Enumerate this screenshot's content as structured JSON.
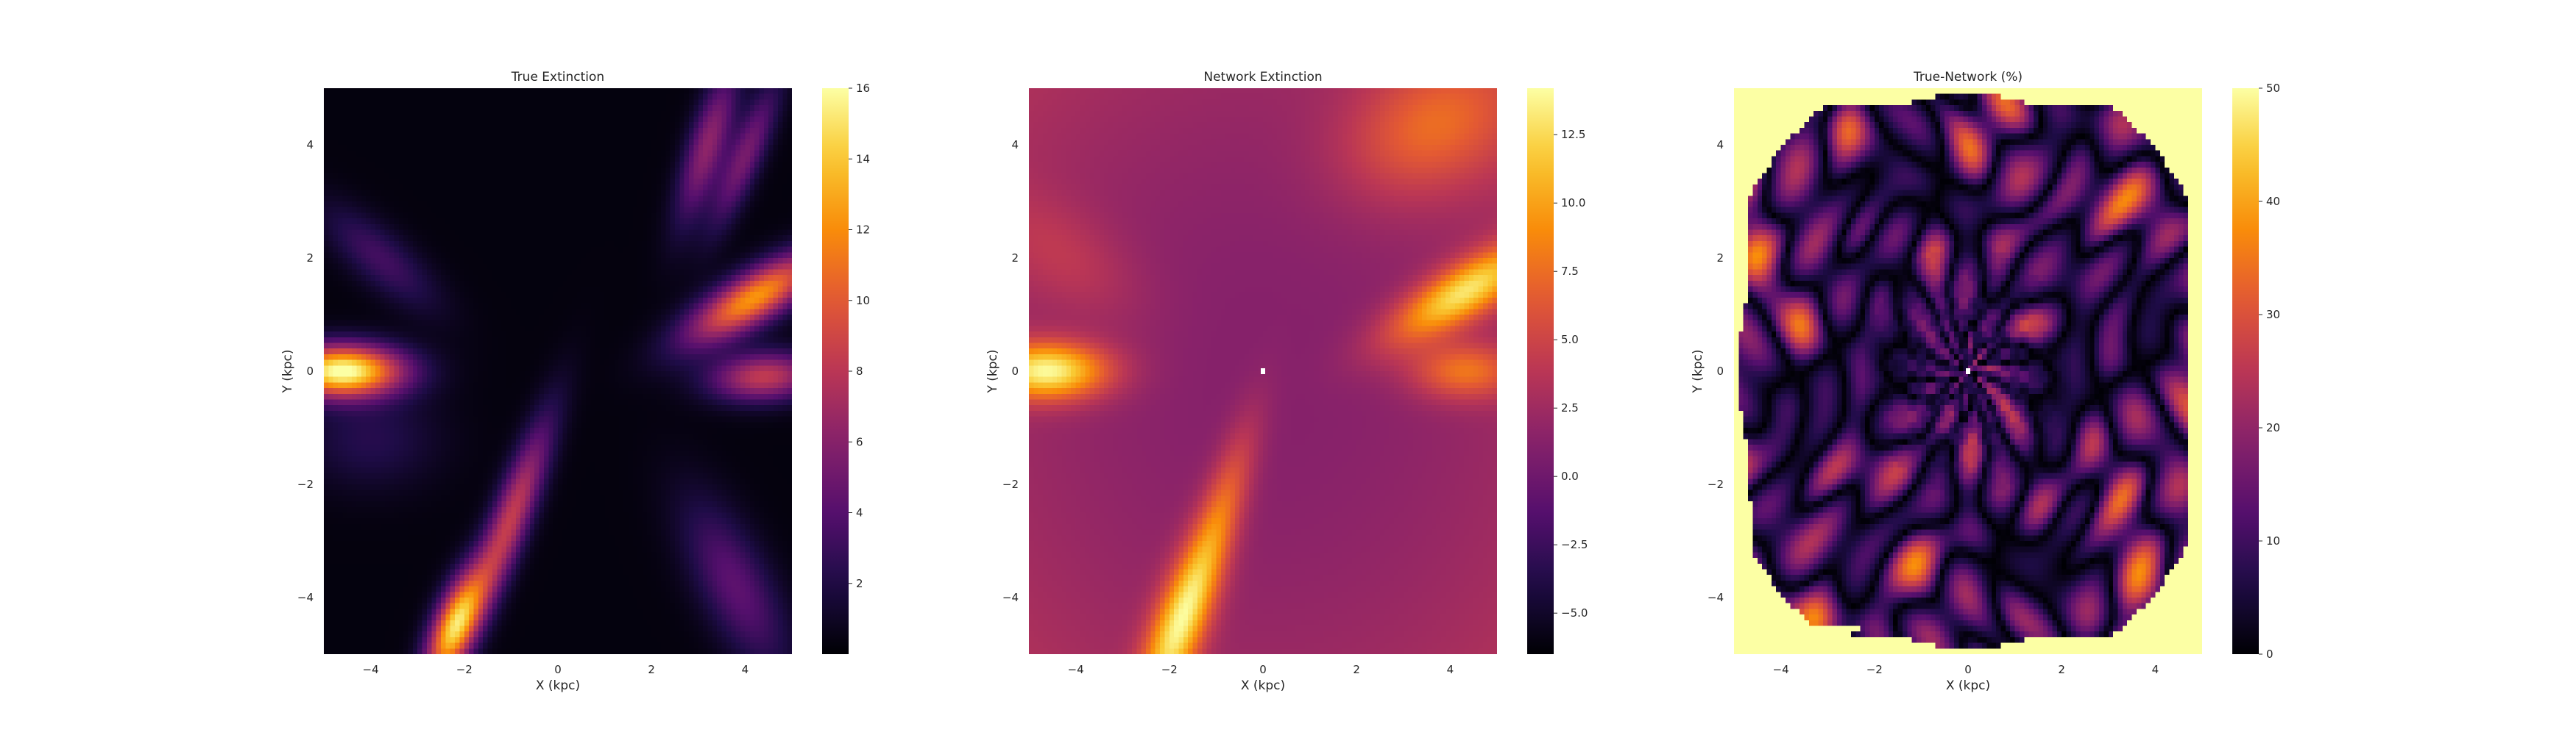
{
  "colormap": "inferno",
  "colors": {
    "background": "#ffffff",
    "text": "#262626",
    "masked_cell": "#ffffff"
  },
  "chart_data": [
    {
      "type": "heatmap",
      "title": "True Extinction",
      "xlabel": "X (kpc)",
      "ylabel": "Y (kpc)",
      "xlim": [
        -5,
        5
      ],
      "ylim": [
        -5,
        5
      ],
      "xticks": [
        "-4",
        "-2",
        "0",
        "2",
        "4"
      ],
      "yticks": [
        "-4",
        "-2",
        "0",
        "2",
        "4"
      ],
      "colorbar": {
        "min": 0,
        "max": 16,
        "ticks": [
          "2",
          "4",
          "6",
          "8",
          "10",
          "12",
          "14",
          "16"
        ]
      },
      "grid": false,
      "features": [
        {
          "x": -4.3,
          "y": 0.0,
          "value": 16,
          "description": "bright blob on left edge"
        },
        {
          "x": -2.2,
          "y": -4.6,
          "value": 14,
          "description": "bright streak lower left"
        },
        {
          "x": 4.2,
          "y": 1.4,
          "value": 12,
          "description": "streak right upper"
        },
        {
          "x": 4.3,
          "y": -0.1,
          "value": 8,
          "description": "streak right middle"
        },
        {
          "x": 3.4,
          "y": 4.2,
          "value": 6,
          "description": "faint streak top right"
        }
      ]
    },
    {
      "type": "heatmap",
      "title": "Network Extinction",
      "xlabel": "X (kpc)",
      "ylabel": "Y (kpc)",
      "xlim": [
        -5,
        5
      ],
      "ylim": [
        -5,
        5
      ],
      "xticks": [
        "-4",
        "-2",
        "0",
        "2",
        "4"
      ],
      "yticks": [
        "-4",
        "-2",
        "0",
        "2",
        "4"
      ],
      "colorbar": {
        "min": -6.5,
        "max": 14.2,
        "ticks": [
          "-5.0",
          "-2.5",
          "0.0",
          "2.5",
          "5.0",
          "7.5",
          "10.0",
          "12.5"
        ]
      },
      "grid": false,
      "features": [
        {
          "x": -4.3,
          "y": 0.0,
          "value": 13,
          "description": "bright blob on left edge"
        },
        {
          "x": -1.8,
          "y": -4.6,
          "value": 12,
          "description": "bright streak lower left"
        },
        {
          "x": 4.2,
          "y": 1.4,
          "value": 12,
          "description": "streak right upper"
        },
        {
          "x": 0.0,
          "y": 0.0,
          "value": null,
          "description": "masked center cell"
        }
      ]
    },
    {
      "type": "heatmap",
      "title": "True-Network (%)",
      "xlabel": "X (kpc)",
      "ylabel": "Y (kpc)",
      "xlim": [
        -5,
        5
      ],
      "ylim": [
        -5,
        5
      ],
      "xticks": [
        "-4",
        "-2",
        "0",
        "2",
        "4"
      ],
      "yticks": [
        "-4",
        "-2",
        "0",
        "2",
        "4"
      ],
      "colorbar": {
        "min": 0,
        "max": 50,
        "ticks": [
          "0",
          "10",
          "20",
          "30",
          "40",
          "50"
        ]
      },
      "grid": false,
      "features": [
        {
          "x": 0.0,
          "y": 0.0,
          "value": null,
          "description": "masked center cell"
        },
        {
          "x": -4.8,
          "y": -4.8,
          "value": 50,
          "description": "saturated corners"
        }
      ]
    }
  ]
}
